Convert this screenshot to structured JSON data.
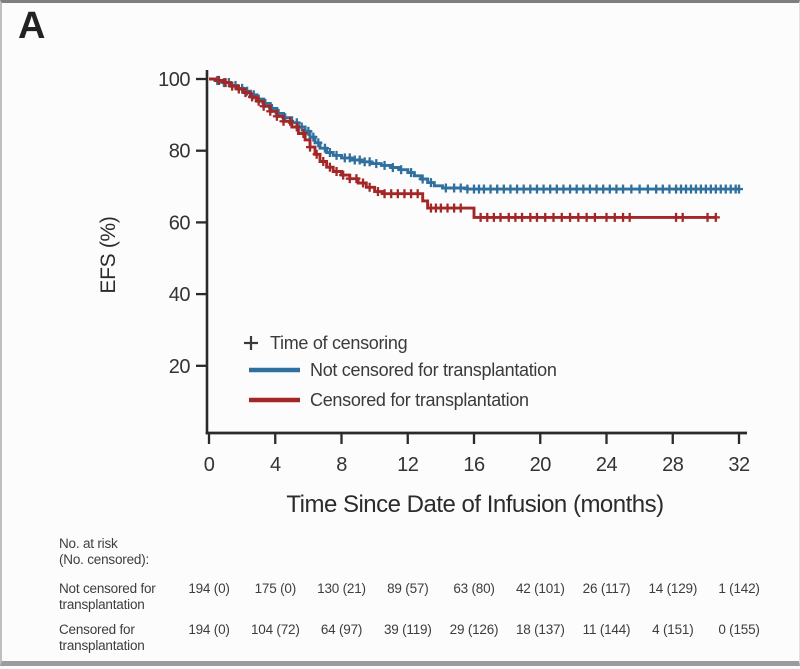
{
  "figure": {
    "panel_label": "A"
  },
  "chart_data": {
    "type": "line",
    "subtype": "kaplan-meier-step",
    "title": "",
    "xlabel": "Time Since Date of Infusion (months)",
    "ylabel": "EFS (%)",
    "xlim": [
      0,
      32
    ],
    "ylim": [
      0,
      100
    ],
    "x_ticks": [
      0,
      4,
      8,
      12,
      16,
      20,
      24,
      28,
      32
    ],
    "y_ticks": [
      100,
      80,
      60,
      40,
      20
    ],
    "grid": false,
    "legend": {
      "position": "lower-left-inside",
      "censor_marker": "+",
      "censor_label": "Time of censoring"
    },
    "series": [
      {
        "name": "Not censored for transplantation",
        "color": "#30709F",
        "steps": [
          [
            0,
            100
          ],
          [
            0.4,
            99.6
          ],
          [
            0.9,
            99
          ],
          [
            1.3,
            98.2
          ],
          [
            1.7,
            97.4
          ],
          [
            2.1,
            96.6
          ],
          [
            2.5,
            95.6
          ],
          [
            2.9,
            94.4
          ],
          [
            3.3,
            93.2
          ],
          [
            3.7,
            91.8
          ],
          [
            4.1,
            90.4
          ],
          [
            4.5,
            89.2
          ],
          [
            5,
            87.8
          ],
          [
            5.4,
            86.6
          ],
          [
            5.8,
            85.4
          ],
          [
            6.1,
            83.8
          ],
          [
            6.4,
            82.2
          ],
          [
            6.7,
            80.7
          ],
          [
            7.1,
            79.5
          ],
          [
            7.5,
            78.7
          ],
          [
            8,
            78
          ],
          [
            8.6,
            77.4
          ],
          [
            9.2,
            76.9
          ],
          [
            9.8,
            76.4
          ],
          [
            10.4,
            75.9
          ],
          [
            11,
            75.3
          ],
          [
            11.5,
            74.7
          ],
          [
            12,
            73.9
          ],
          [
            12.4,
            73
          ],
          [
            12.8,
            72.1
          ],
          [
            13.2,
            71.1
          ],
          [
            13.6,
            70.2
          ],
          [
            14.1,
            69.6
          ],
          [
            15.6,
            69.3
          ],
          [
            32,
            69.3
          ]
        ],
        "censor_months": [
          0.5,
          0.9,
          1.2,
          1.6,
          2.0,
          2.3,
          2.7,
          3.0,
          3.4,
          3.8,
          4.2,
          4.6,
          5.0,
          5.3,
          5.6,
          6.0,
          6.3,
          6.6,
          7.0,
          7.3,
          7.7,
          8.2,
          8.5,
          8.8,
          9.1,
          9.4,
          9.7,
          10.1,
          10.6,
          11.1,
          11.6,
          12.2,
          12.9,
          13.4,
          14.3,
          14.8,
          15.2,
          15.6,
          16.0,
          16.3,
          16.6,
          17.0,
          17.4,
          17.8,
          18.2,
          18.6,
          19.0,
          19.4,
          19.8,
          20.2,
          20.6,
          21.0,
          21.4,
          21.8,
          22.2,
          22.6,
          23.0,
          23.4,
          23.8,
          24.2,
          24.6,
          25.0,
          25.5,
          26.0,
          26.5,
          27.0,
          27.4,
          27.8,
          28.2,
          28.5,
          28.8,
          29.1,
          29.4,
          29.7,
          30.0,
          30.3,
          30.6,
          30.9,
          31.2,
          31.5,
          31.8,
          32.0
        ]
      },
      {
        "name": "Censored for transplantation",
        "color": "#A32726",
        "steps": [
          [
            0,
            100
          ],
          [
            0.4,
            99.6
          ],
          [
            0.9,
            99
          ],
          [
            1.3,
            98
          ],
          [
            1.7,
            97.2
          ],
          [
            2.1,
            96.2
          ],
          [
            2.5,
            95
          ],
          [
            2.9,
            93.8
          ],
          [
            3.3,
            92.4
          ],
          [
            3.7,
            91
          ],
          [
            4.1,
            89.6
          ],
          [
            4.5,
            88.2
          ],
          [
            5,
            86.6
          ],
          [
            5.4,
            84.8
          ],
          [
            5.8,
            83
          ],
          [
            6.1,
            81
          ],
          [
            6.4,
            79
          ],
          [
            6.7,
            77
          ],
          [
            7.1,
            75.4
          ],
          [
            7.5,
            74.2
          ],
          [
            8,
            73.2
          ],
          [
            8.5,
            72.2
          ],
          [
            9,
            71
          ],
          [
            9.5,
            69.8
          ],
          [
            10,
            68.6
          ],
          [
            10.5,
            68
          ],
          [
            12.8,
            68
          ],
          [
            12.9,
            66
          ],
          [
            13.2,
            64
          ],
          [
            15.8,
            64
          ],
          [
            16,
            61.4
          ],
          [
            30.6,
            61.4
          ]
        ],
        "censor_months": [
          0.6,
          1.0,
          1.4,
          1.8,
          2.2,
          2.6,
          3.0,
          3.3,
          3.7,
          4.1,
          4.5,
          4.9,
          5.3,
          5.7,
          6.1,
          6.5,
          6.9,
          7.3,
          7.7,
          8.1,
          8.5,
          8.9,
          9.3,
          9.7,
          10.2,
          10.6,
          11.0,
          11.4,
          11.8,
          12.2,
          12.6,
          13.4,
          13.7,
          14.0,
          14.4,
          14.8,
          15.2,
          16.4,
          16.8,
          17.2,
          17.6,
          18.1,
          18.5,
          18.9,
          19.4,
          19.8,
          20.3,
          20.8,
          21.3,
          21.8,
          22.3,
          22.8,
          23.3,
          24.0,
          24.5,
          25.0,
          25.4,
          28.2,
          28.6,
          30.1,
          30.6
        ]
      }
    ]
  },
  "risk_table": {
    "header_lines": [
      "No. at risk",
      "(No. censored):"
    ],
    "time_points": [
      0,
      4,
      8,
      12,
      16,
      20,
      24,
      28,
      32
    ],
    "rows": [
      {
        "label_lines": [
          "Not censored for",
          "transplantation"
        ],
        "values": [
          "194 (0)",
          "175 (0)",
          "130 (21)",
          "89 (57)",
          "63 (80)",
          "42 (101)",
          "26 (117)",
          "14 (129)",
          "1 (142)"
        ]
      },
      {
        "label_lines": [
          "Censored for",
          "transplantation"
        ],
        "values": [
          "194 (0)",
          "104 (72)",
          "64 (97)",
          "39 (119)",
          "29 (126)",
          "18 (137)",
          "11 (144)",
          "4 (151)",
          "0 (155)"
        ]
      }
    ]
  },
  "colors": {
    "axis": "#2a2a2a",
    "tick_text": "#333333",
    "legend_text": "#3a3a3a",
    "table_text": "#3d3d3d",
    "background": "#fcfcfc",
    "not_censored_blue": "#30709F",
    "censored_red": "#A32726"
  }
}
